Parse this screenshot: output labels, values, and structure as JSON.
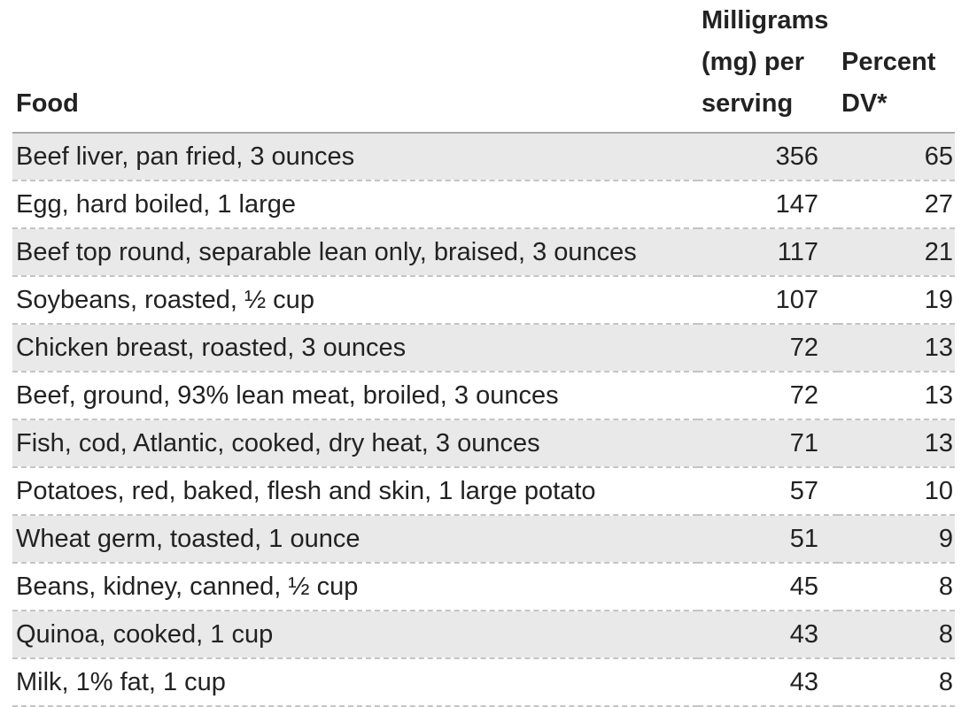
{
  "table": {
    "headers": {
      "food": "Food",
      "mg": "Milligrams (mg) per serving",
      "dv": "Percent DV*"
    },
    "rows": [
      {
        "food": "Beef liver, pan fried, 3 ounces",
        "mg": "356",
        "dv": "65"
      },
      {
        "food": "Egg, hard boiled, 1 large",
        "mg": "147",
        "dv": "27"
      },
      {
        "food": "Beef top round, separable lean only, braised, 3 ounces",
        "mg": "117",
        "dv": "21"
      },
      {
        "food": "Soybeans, roasted, ½ cup",
        "mg": "107",
        "dv": "19"
      },
      {
        "food": "Chicken breast, roasted, 3 ounces",
        "mg": "72",
        "dv": "13"
      },
      {
        "food": "Beef, ground, 93% lean meat, broiled, 3 ounces",
        "mg": "72",
        "dv": "13"
      },
      {
        "food": "Fish, cod, Atlantic, cooked, dry heat, 3 ounces",
        "mg": "71",
        "dv": "13"
      },
      {
        "food": "Potatoes, red, baked, flesh and skin, 1 large potato",
        "mg": "57",
        "dv": "10"
      },
      {
        "food": "Wheat germ, toasted, 1 ounce",
        "mg": "51",
        "dv": "9"
      },
      {
        "food": "Beans, kidney, canned, ½ cup",
        "mg": "45",
        "dv": "8"
      },
      {
        "food": "Quinoa, cooked, 1 cup",
        "mg": "43",
        "dv": "8"
      },
      {
        "food": "Milk, 1% fat, 1 cup",
        "mg": "43",
        "dv": "8"
      }
    ]
  },
  "colors": {
    "text": "#222222",
    "stripe": "#e9e9e9",
    "rule": "#a9a9a9",
    "dashed_rule": "#c4c4c4"
  }
}
